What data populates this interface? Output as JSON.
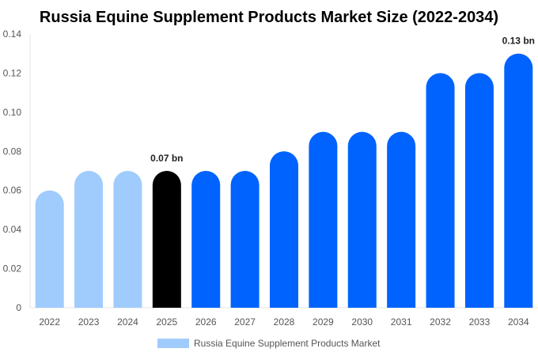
{
  "chart_data": {
    "type": "bar",
    "title": "Russia Equine Supplement Products Market Size (2022-2034)",
    "categories": [
      "2022",
      "2023",
      "2024",
      "2025",
      "2026",
      "2027",
      "2028",
      "2029",
      "2030",
      "2031",
      "2032",
      "2033",
      "2034"
    ],
    "series": [
      {
        "name": "Russia Equine Supplement Products Market",
        "values": [
          0.06,
          0.07,
          0.07,
          0.07,
          0.07,
          0.07,
          0.08,
          0.09,
          0.09,
          0.09,
          0.12,
          0.12,
          0.13
        ]
      }
    ],
    "bar_colors": [
      "#a0cbfd",
      "#a0cbfd",
      "#a0cbfd",
      "#000000",
      "#0063fe",
      "#0063fe",
      "#0063fe",
      "#0063fe",
      "#0063fe",
      "#0063fe",
      "#0063fe",
      "#0063fe",
      "#0063fe"
    ],
    "data_labels": [
      {
        "category": "2025",
        "text": "0.07 bn"
      },
      {
        "category": "2034",
        "text": "0.13 bn"
      }
    ],
    "yticks": [
      "0",
      "0.02",
      "0.04",
      "0.06",
      "0.08",
      "0.10",
      "0.12",
      "0.14"
    ],
    "ylim": [
      0,
      0.14
    ],
    "xlabel": "",
    "ylabel": "",
    "grid": false,
    "legend_position": "bottom",
    "legend_color": "#a0cbfd"
  }
}
